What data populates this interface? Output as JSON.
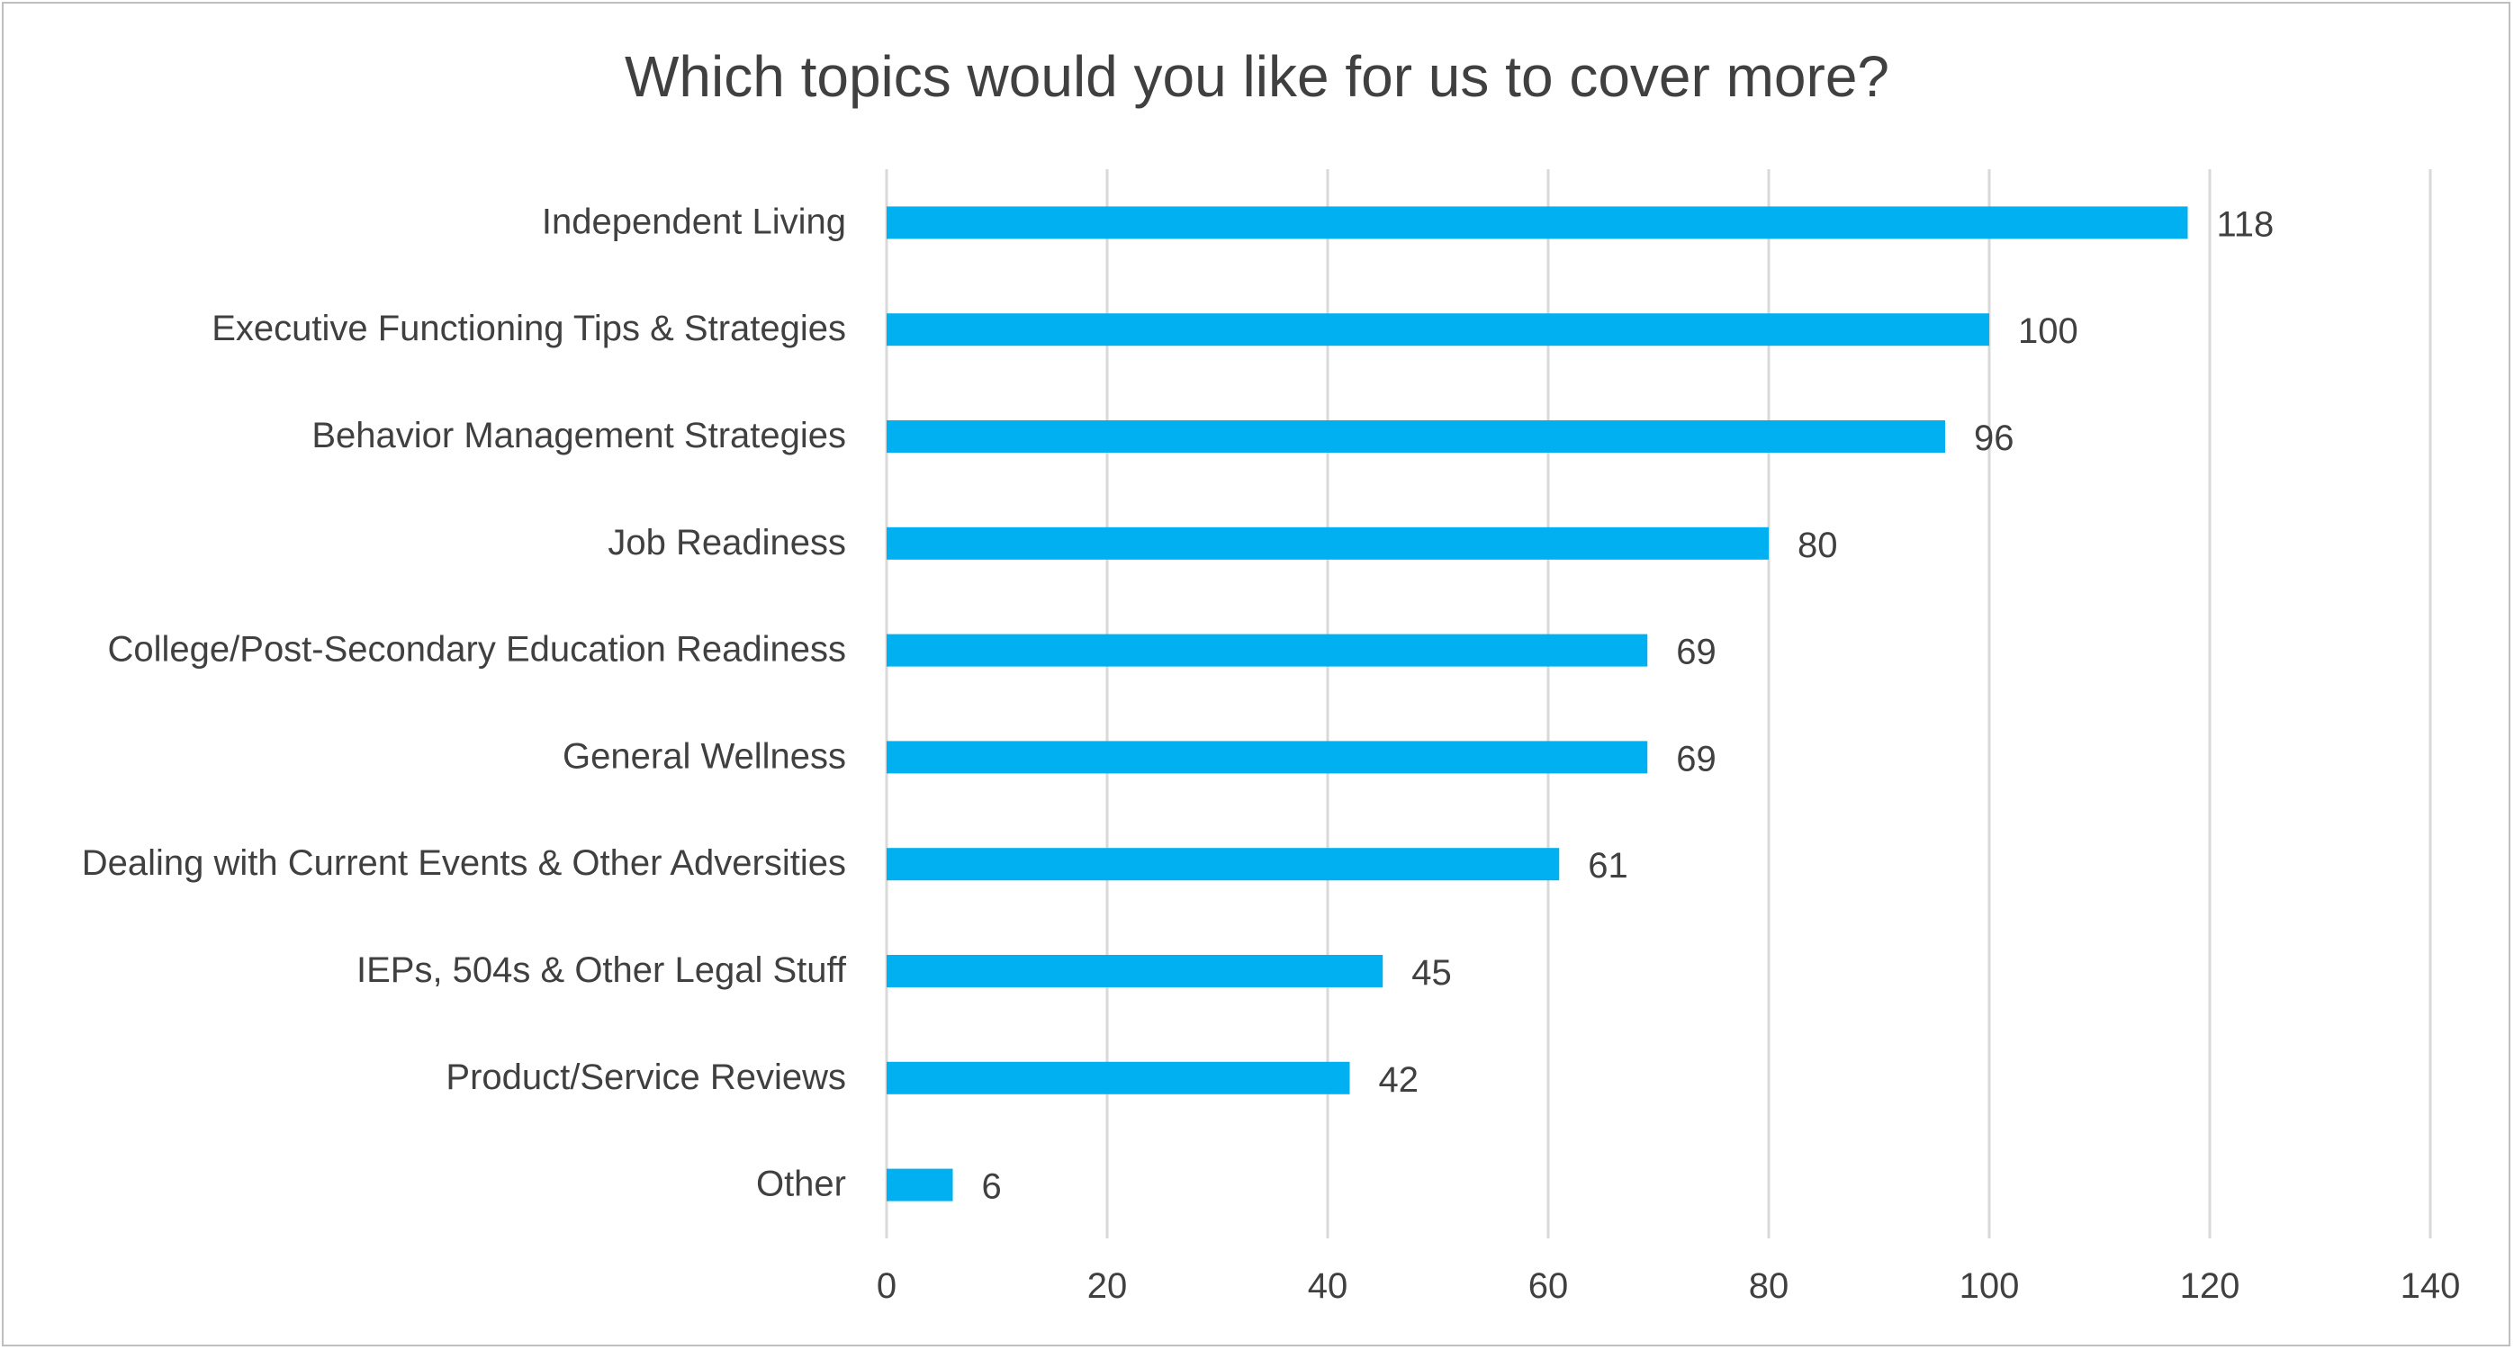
{
  "chart_data": {
    "type": "bar",
    "orientation": "horizontal",
    "title": "Which topics would you like for us to cover more?",
    "categories": [
      "Independent Living",
      "Executive Functioning Tips & Strategies",
      "Behavior Management Strategies",
      "Job Readiness",
      "College/Post-Secondary Education Readiness",
      "General Wellness",
      "Dealing with Current Events & Other Adversities",
      "IEPs, 504s & Other Legal Stuff",
      "Product/Service Reviews",
      "Other"
    ],
    "values": [
      118,
      100,
      96,
      80,
      69,
      69,
      61,
      45,
      42,
      6
    ],
    "xlim": [
      0,
      140
    ],
    "xticks": [
      0,
      20,
      40,
      60,
      80,
      100,
      120,
      140
    ],
    "xlabel": "",
    "ylabel": "",
    "grid": true,
    "data_labels": true,
    "bar_color": "#00b0f0",
    "grid_color": "#d9d9d9",
    "text_color": "#404040"
  }
}
